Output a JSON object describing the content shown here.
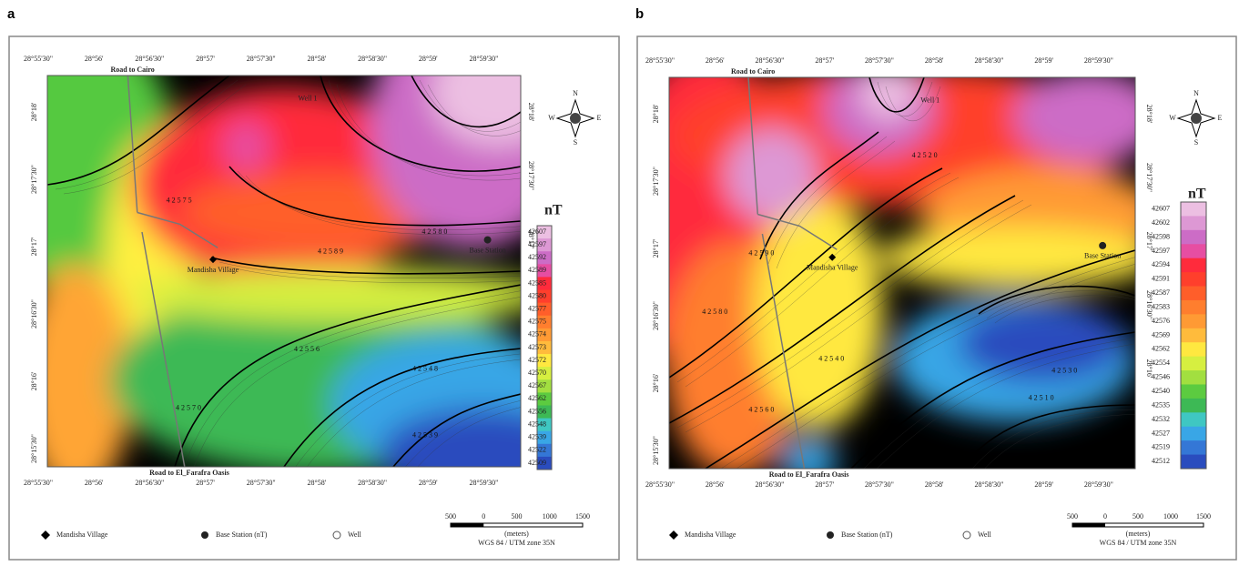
{
  "panels": [
    {
      "label": "a",
      "lon_top": [
        "28°55'30\"",
        "28°56'",
        "28°56'30\"",
        "28°57'",
        "28°57'30\"",
        "28°58'",
        "28°58'30\"",
        "28°59'",
        "28°59'30\""
      ],
      "lon_bottom": [
        "28°55'30\"",
        "28°56'",
        "28°56'30\"",
        "28°57'",
        "28°57'30\"",
        "28°58'",
        "28°58'30\"",
        "28°59'",
        "28°59'30\""
      ],
      "lat_left": [
        "28°18'",
        "28°17'30\"",
        "28°17'",
        "28°16'30\"",
        "28°16'",
        "28°15'30\""
      ],
      "lat_right": [
        "28°18'",
        "28°17'30\"",
        "28°17'"
      ],
      "road_north": "Road to Cairo",
      "road_south": "Road to El_Farafra Oasis",
      "well_label": "Well 1",
      "village_label": "Mandisha Village",
      "base_label": "Base Station",
      "contour_labels": [
        "42575",
        "42589",
        "42580",
        "42570",
        "42556",
        "42548",
        "42539"
      ],
      "compass": [
        "N",
        "S",
        "E",
        "W"
      ],
      "legend_unit": "nT",
      "legend_values": [
        "42607",
        "42597",
        "42592",
        "42589",
        "42585",
        "42580",
        "42577",
        "42575",
        "42574",
        "42573",
        "42572",
        "42570",
        "42567",
        "42562",
        "42556",
        "42548",
        "42539",
        "42522",
        "42509"
      ],
      "key": [
        "Mandisha Village",
        "Base Station (nT)",
        "Well"
      ],
      "scale_ticks": [
        "500",
        "0",
        "500",
        "1000",
        "1500"
      ],
      "scale_unit": "(meters)",
      "projection": "WGS 84 / UTM zone 35N"
    },
    {
      "label": "b",
      "lon_top": [
        "28°55'30\"",
        "28°56'",
        "28°56'30\"",
        "28°57'",
        "28°57'30\"",
        "28°58'",
        "28°58'30\"",
        "28°59'",
        "28°59'30\""
      ],
      "lon_bottom": [
        "28°55'30\"",
        "28°56'",
        "28°56'30\"",
        "28°57'",
        "28°57'30\"",
        "28°58'",
        "28°58'30\"",
        "28°59'",
        "28°59'30\""
      ],
      "lat_left": [
        "28°18'",
        "28°17'30\"",
        "28°17'",
        "28°16'30\"",
        "28°16'",
        "28°15'30\""
      ],
      "lat_right": [
        "28°18'",
        "28°17'30\"",
        "28°17'",
        "28°16'30\"",
        "28°16'"
      ],
      "road_north": "Road to Cairo",
      "road_south": "Road to El_Farafra Oasis",
      "well_label": "Well 1",
      "village_label": "Mandisha Village",
      "base_label": "Base Station",
      "contour_labels": [
        "42580",
        "42590",
        "42560",
        "42540",
        "42510",
        "42530",
        "42520"
      ],
      "compass": [
        "N",
        "S",
        "E",
        "W"
      ],
      "legend_unit": "nT",
      "legend_values": [
        "42607",
        "42602",
        "42598",
        "42597",
        "42594",
        "42591",
        "42587",
        "42583",
        "42576",
        "42569",
        "42562",
        "42554",
        "42546",
        "42540",
        "42535",
        "42532",
        "42527",
        "42519",
        "42512"
      ],
      "key": [
        "Mandisha Village",
        "Base Station (nT)",
        "Well"
      ],
      "scale_ticks": [
        "500",
        "0",
        "500",
        "1000",
        "1500"
      ],
      "scale_unit": "(meters)",
      "projection": "WGS 84 / UTM zone 35N"
    }
  ]
}
